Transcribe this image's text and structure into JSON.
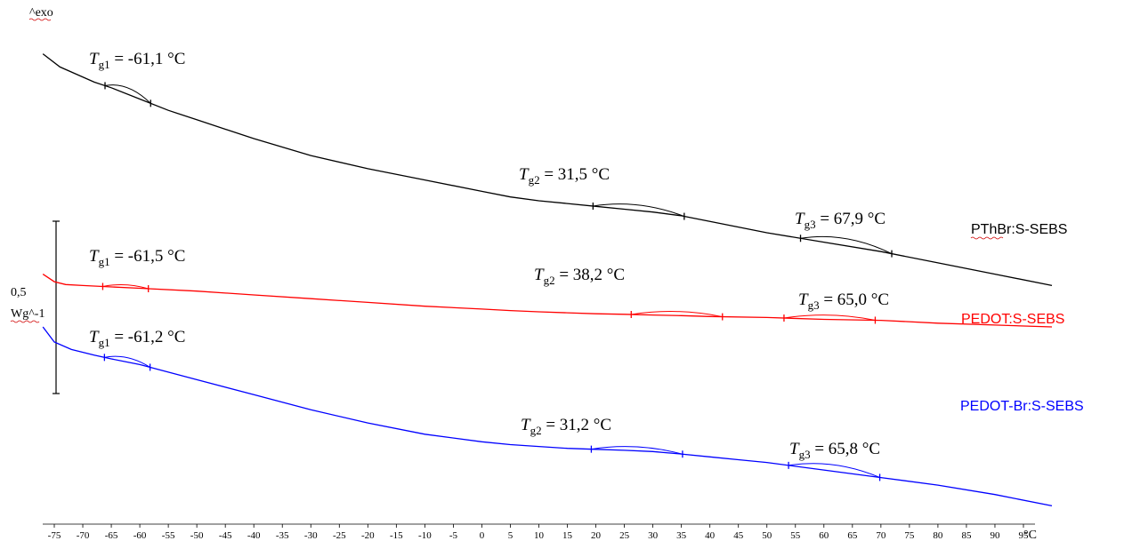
{
  "chart_data": {
    "type": "line",
    "title": "",
    "xlabel": "",
    "ylabel": "",
    "x_unit": "°C",
    "y_marker": "^exo",
    "scale_bar": {
      "value": "0,5",
      "unit": "Wg^-1"
    },
    "xlim": [
      -77,
      101
    ],
    "grid": false,
    "x_ticks": [
      -75,
      -70,
      -65,
      -60,
      -55,
      -50,
      -45,
      -40,
      -35,
      -30,
      -25,
      -20,
      -15,
      -10,
      -5,
      0,
      5,
      10,
      15,
      20,
      25,
      30,
      35,
      40,
      45,
      50,
      55,
      60,
      65,
      70,
      75,
      80,
      85,
      90,
      95
    ],
    "series": [
      {
        "name": "PThBr:S-SEBS",
        "color": "#000000",
        "x": [
          -77,
          -74,
          -71,
          -68,
          -65,
          -60,
          -55,
          -50,
          -40,
          -30,
          -20,
          -10,
          0,
          5,
          10,
          15,
          20,
          25,
          30,
          35,
          40,
          45,
          50,
          60,
          70,
          80,
          90,
          100
        ],
        "y": [
          2.95,
          2.88,
          2.84,
          2.8,
          2.77,
          2.71,
          2.65,
          2.6,
          2.5,
          2.41,
          2.34,
          2.28,
          2.22,
          2.19,
          2.17,
          2.155,
          2.14,
          2.125,
          2.11,
          2.09,
          2.06,
          2.03,
          2.0,
          1.95,
          1.9,
          1.84,
          1.78,
          1.72
        ],
        "transitions": [
          {
            "label": "T_g1 = -61,1 °C",
            "value": -61.1
          },
          {
            "label": "T_g2 = 31,5 °C",
            "value": 31.5
          },
          {
            "label": "T_g3 = 67,9 °C",
            "value": 67.9
          }
        ]
      },
      {
        "name": "PEDOT:S-SEBS",
        "color": "#ff0000",
        "x": [
          -77,
          -75,
          -73,
          -70,
          -60,
          -50,
          -40,
          -30,
          -20,
          -10,
          0,
          5,
          10,
          15,
          20,
          25,
          30,
          35,
          40,
          50,
          60,
          70,
          80,
          90,
          100
        ],
        "y": [
          1.78,
          1.74,
          1.725,
          1.72,
          1.705,
          1.69,
          1.67,
          1.65,
          1.63,
          1.61,
          1.595,
          1.587,
          1.58,
          1.575,
          1.57,
          1.567,
          1.563,
          1.56,
          1.555,
          1.55,
          1.54,
          1.535,
          1.52,
          1.51,
          1.5
        ],
        "transitions": [
          {
            "label": "T_g1 = -61,5 °C",
            "value": -61.5
          },
          {
            "label": "T_g2 = 38,2 °C",
            "value": 38.2
          },
          {
            "label": "T_g3 = 65,0 °C",
            "value": 65.0
          }
        ]
      },
      {
        "name": "PEDOT-Br:S-SEBS",
        "color": "#0000ff",
        "x": [
          -77,
          -75,
          -72,
          -68,
          -65,
          -60,
          -55,
          -50,
          -40,
          -30,
          -20,
          -10,
          0,
          5,
          10,
          15,
          20,
          25,
          30,
          35,
          40,
          45,
          50,
          60,
          70,
          80,
          90,
          100
        ],
        "y": [
          1.5,
          1.42,
          1.38,
          1.35,
          1.33,
          1.3,
          1.26,
          1.22,
          1.14,
          1.06,
          0.99,
          0.93,
          0.89,
          0.875,
          0.865,
          0.855,
          0.85,
          0.845,
          0.838,
          0.825,
          0.81,
          0.795,
          0.78,
          0.74,
          0.7,
          0.66,
          0.61,
          0.55
        ],
        "transitions": [
          {
            "label": "T_g1 = -61,2 °C",
            "value": -61.2
          },
          {
            "label": "T_g2 = 31,2 °C",
            "value": 31.2
          },
          {
            "label": "T_g3 = 65,8 °C",
            "value": 65.8
          }
        ]
      }
    ]
  }
}
